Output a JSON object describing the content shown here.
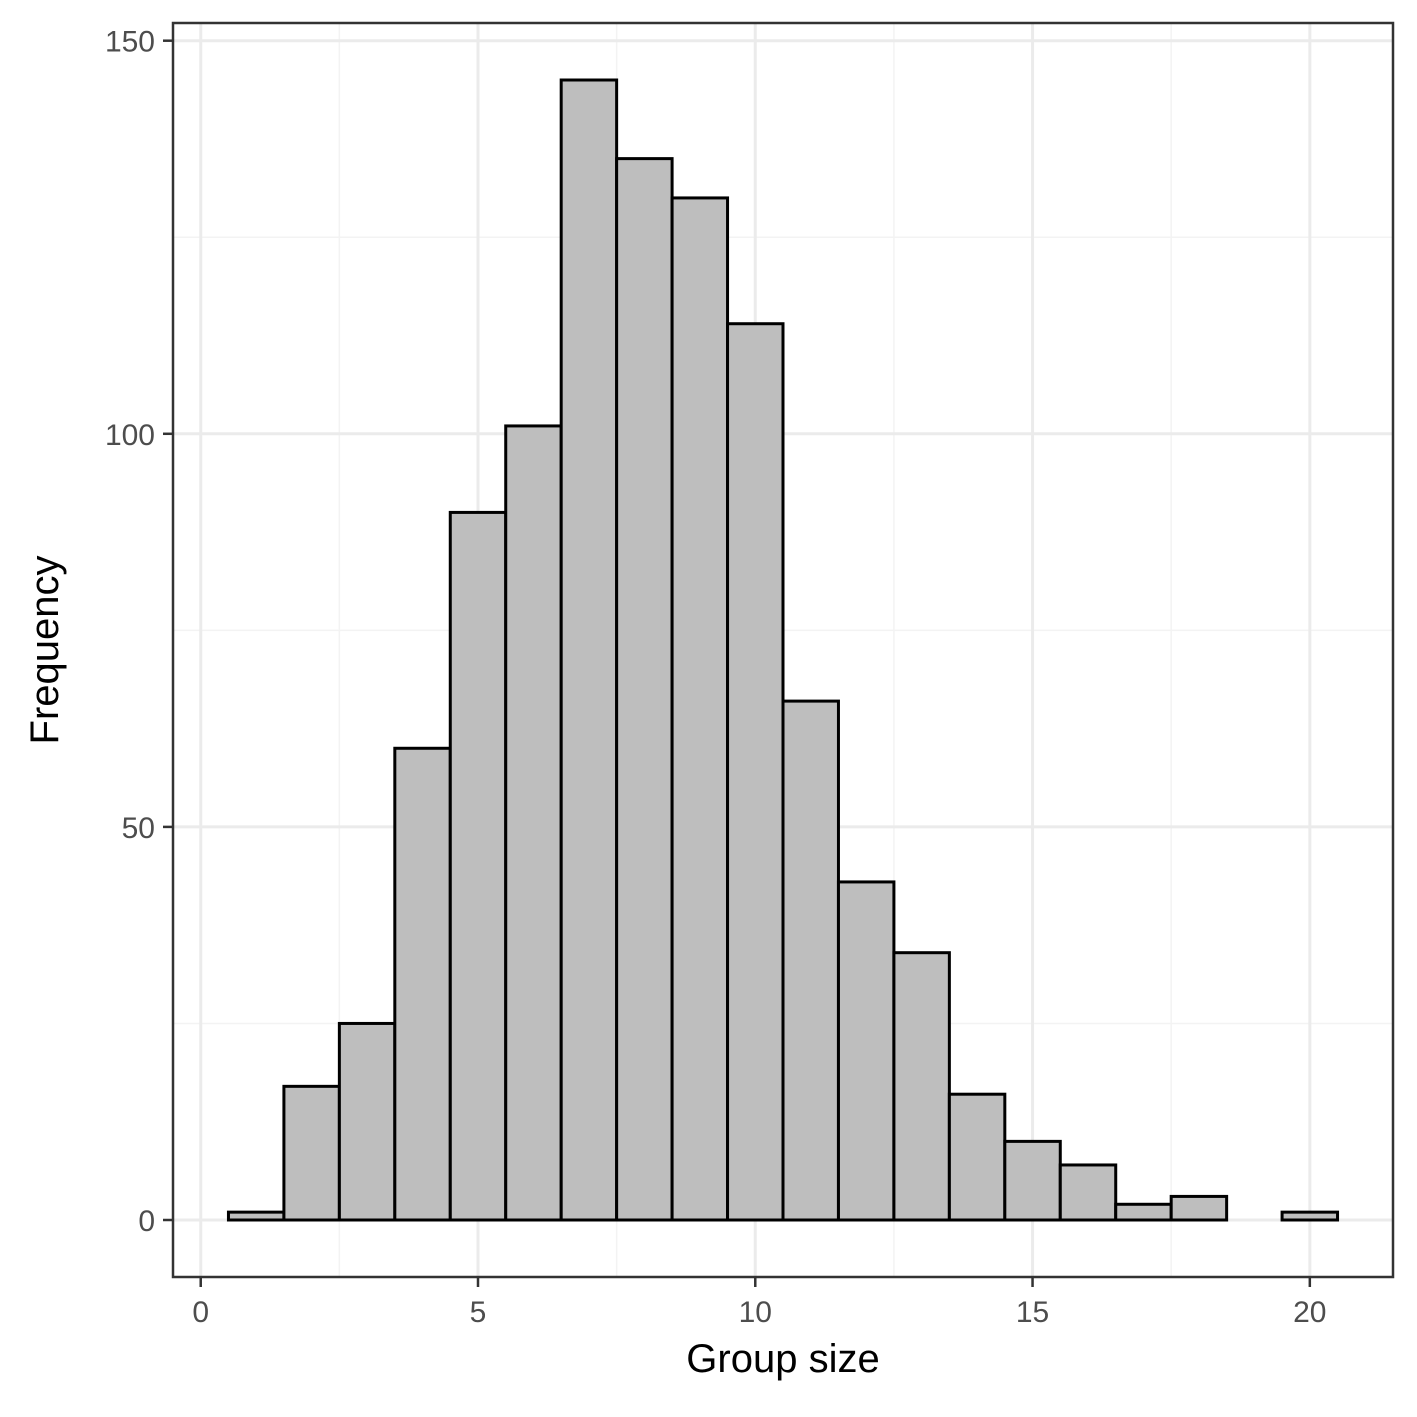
{
  "chart_data": {
    "type": "bar",
    "title": "",
    "xlabel": "Group size",
    "ylabel": "Frequency",
    "xlim": [
      -0.5,
      21.5
    ],
    "ylim": [
      -7.25,
      152.25
    ],
    "x_ticks": [
      0,
      5,
      10,
      15,
      20
    ],
    "y_ticks": [
      0,
      50,
      100,
      150
    ],
    "x_minor_gridlines": [
      2.5,
      7.5,
      12.5,
      17.5
    ],
    "y_minor_gridlines": [
      25,
      75,
      125
    ],
    "grid": true,
    "bin_width": 1,
    "bins": [
      {
        "x": 1,
        "count": 1
      },
      {
        "x": 2,
        "count": 17
      },
      {
        "x": 3,
        "count": 25
      },
      {
        "x": 4,
        "count": 60
      },
      {
        "x": 5,
        "count": 90
      },
      {
        "x": 6,
        "count": 101
      },
      {
        "x": 7,
        "count": 145
      },
      {
        "x": 8,
        "count": 135
      },
      {
        "x": 9,
        "count": 130
      },
      {
        "x": 10,
        "count": 114
      },
      {
        "x": 11,
        "count": 66
      },
      {
        "x": 12,
        "count": 43
      },
      {
        "x": 13,
        "count": 34
      },
      {
        "x": 14,
        "count": 16
      },
      {
        "x": 15,
        "count": 10
      },
      {
        "x": 16,
        "count": 7
      },
      {
        "x": 17,
        "count": 2
      },
      {
        "x": 18,
        "count": 3
      },
      {
        "x": 19,
        "count": 0
      },
      {
        "x": 20,
        "count": 1
      }
    ],
    "colors": {
      "bar_fill": "#bebebe",
      "bar_stroke": "#000000",
      "grid_major": "#ebebeb",
      "grid_minor": "#f3f3f3",
      "panel_border": "#333333",
      "tick_label": "#4d4d4d"
    }
  }
}
